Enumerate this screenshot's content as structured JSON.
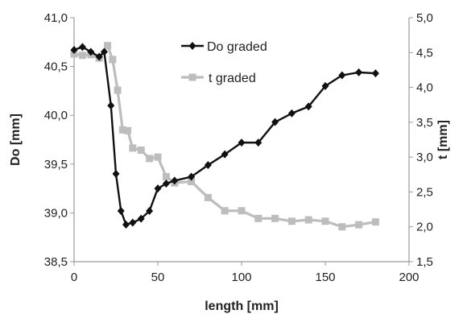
{
  "chart_data": {
    "type": "line",
    "xlabel": "length [mm]",
    "ylabel_left": "Do [mm]",
    "ylabel_right": "t [mm]",
    "xlim": [
      0,
      200
    ],
    "ylim_left": [
      38.5,
      41.0
    ],
    "ylim_right": [
      1.5,
      5.0
    ],
    "x_ticks": [
      "0",
      "50",
      "100",
      "150",
      "200"
    ],
    "y_left_ticks": [
      "38,5",
      "39,0",
      "39,5",
      "40,0",
      "40,5",
      "41,0"
    ],
    "y_right_ticks": [
      "1,5",
      "2,0",
      "2,5",
      "3,0",
      "3,5",
      "4,0",
      "4,5",
      "5,0"
    ],
    "grid": false,
    "legend_position": "top-center",
    "series": [
      {
        "name": "Do graded",
        "axis": "left",
        "color": "#111111",
        "marker": "diamond",
        "points": [
          [
            0,
            40.67
          ],
          [
            5,
            40.7
          ],
          [
            10,
            40.65
          ],
          [
            15,
            40.6
          ],
          [
            18,
            40.65
          ],
          [
            22,
            40.1
          ],
          [
            25,
            39.4
          ],
          [
            28,
            39.02
          ],
          [
            31,
            38.88
          ],
          [
            35,
            38.9
          ],
          [
            40,
            38.94
          ],
          [
            45,
            39.02
          ],
          [
            50,
            39.25
          ],
          [
            55,
            39.3
          ],
          [
            60,
            39.33
          ],
          [
            70,
            39.37
          ],
          [
            80,
            39.49
          ],
          [
            90,
            39.6
          ],
          [
            100,
            39.72
          ],
          [
            110,
            39.72
          ],
          [
            120,
            39.93
          ],
          [
            130,
            40.02
          ],
          [
            140,
            40.09
          ],
          [
            150,
            40.3
          ],
          [
            160,
            40.41
          ],
          [
            170,
            40.44
          ],
          [
            180,
            40.43
          ]
        ]
      },
      {
        "name": "t graded",
        "axis": "right",
        "color": "#bdbdbd",
        "marker": "square",
        "points": [
          [
            0,
            4.48
          ],
          [
            5,
            4.46
          ],
          [
            10,
            4.47
          ],
          [
            15,
            4.42
          ],
          [
            20,
            4.6
          ],
          [
            23,
            4.4
          ],
          [
            26,
            3.96
          ],
          [
            29,
            3.39
          ],
          [
            32,
            3.38
          ],
          [
            35,
            3.13
          ],
          [
            40,
            3.1
          ],
          [
            45,
            2.98
          ],
          [
            50,
            3.0
          ],
          [
            55,
            2.72
          ],
          [
            60,
            2.63
          ],
          [
            70,
            2.65
          ],
          [
            80,
            2.42
          ],
          [
            90,
            2.23
          ],
          [
            100,
            2.23
          ],
          [
            110,
            2.12
          ],
          [
            120,
            2.12
          ],
          [
            130,
            2.08
          ],
          [
            140,
            2.1
          ],
          [
            150,
            2.08
          ],
          [
            160,
            2.0
          ],
          [
            170,
            2.03
          ],
          [
            180,
            2.07
          ]
        ]
      }
    ]
  }
}
